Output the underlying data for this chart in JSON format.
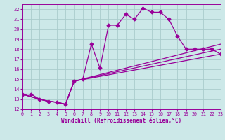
{
  "xlabel": "Windchill (Refroidissement éolien,°C)",
  "ylabel": "",
  "background_color": "#cce8e8",
  "grid_color": "#aacccc",
  "line_color": "#990099",
  "xlim": [
    0,
    23
  ],
  "ylim": [
    12,
    22.5
  ],
  "xticks": [
    0,
    1,
    2,
    3,
    4,
    5,
    6,
    7,
    8,
    9,
    10,
    11,
    12,
    13,
    14,
    15,
    16,
    17,
    18,
    19,
    20,
    21,
    22,
    23
  ],
  "yticks": [
    12,
    13,
    14,
    15,
    16,
    17,
    18,
    19,
    20,
    21,
    22
  ],
  "line1_x": [
    0,
    1,
    2,
    3,
    4,
    5,
    6,
    7,
    8,
    9,
    10,
    11,
    12,
    13,
    14,
    15,
    16,
    17,
    18,
    19,
    20,
    21,
    22,
    23
  ],
  "line1_y": [
    13.5,
    13.5,
    13.0,
    12.8,
    12.7,
    12.5,
    14.8,
    15.0,
    18.5,
    16.1,
    20.4,
    20.4,
    21.5,
    21.0,
    22.1,
    21.7,
    21.7,
    21.0,
    19.3,
    18.0,
    18.0,
    18.0,
    18.0,
    17.5
  ],
  "line2_x": [
    0,
    2,
    3,
    4,
    5,
    6,
    23
  ],
  "line2_y": [
    13.5,
    13.0,
    12.8,
    12.7,
    12.5,
    14.8,
    17.5
  ],
  "line3_x": [
    0,
    2,
    3,
    4,
    5,
    6,
    23
  ],
  "line3_y": [
    13.5,
    13.0,
    12.8,
    12.7,
    12.5,
    14.8,
    18.0
  ],
  "line4_x": [
    0,
    2,
    3,
    4,
    5,
    6,
    23
  ],
  "line4_y": [
    13.5,
    13.0,
    12.8,
    12.7,
    12.5,
    14.8,
    18.5
  ],
  "marker": "D",
  "markersize": 2.5,
  "linewidth": 0.9
}
